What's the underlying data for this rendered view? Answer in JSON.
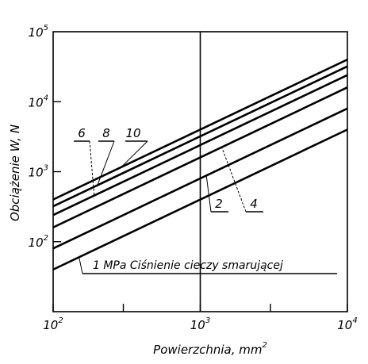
{
  "chart_data": {
    "type": "line",
    "title": "",
    "xlabel": "Powierzchnia, mm",
    "xlabel_exp": "2",
    "ylabel": "Obciążenie W, N",
    "xscale": "log",
    "yscale": "log",
    "xlim": [
      100,
      10000
    ],
    "ylim": [
      10,
      100000
    ],
    "grid": false,
    "x_ticks": [
      {
        "base": "10",
        "exp": "2"
      },
      {
        "base": "10",
        "exp": "3"
      },
      {
        "base": "10",
        "exp": "4"
      }
    ],
    "y_ticks": [
      {
        "base": "10",
        "exp": "2"
      },
      {
        "base": "10",
        "exp": "3"
      },
      {
        "base": "10",
        "exp": "4"
      },
      {
        "base": "10",
        "exp": "5"
      }
    ],
    "reference_line_x": 1000,
    "series": [
      {
        "name": "1",
        "x": [
          100,
          10000
        ],
        "y": [
          40,
          4000
        ]
      },
      {
        "name": "2",
        "x": [
          100,
          10000
        ],
        "y": [
          80,
          8000
        ]
      },
      {
        "name": "4",
        "x": [
          100,
          10000
        ],
        "y": [
          160,
          16000
        ]
      },
      {
        "name": "6",
        "x": [
          100,
          10000
        ],
        "y": [
          240,
          24000
        ]
      },
      {
        "name": "8",
        "x": [
          100,
          10000
        ],
        "y": [
          320,
          32000
        ]
      },
      {
        "name": "10",
        "x": [
          100,
          10000
        ],
        "y": [
          400,
          40000
        ]
      }
    ],
    "annotation": "1 MPa Ciśnienie cieczy smarującej"
  }
}
